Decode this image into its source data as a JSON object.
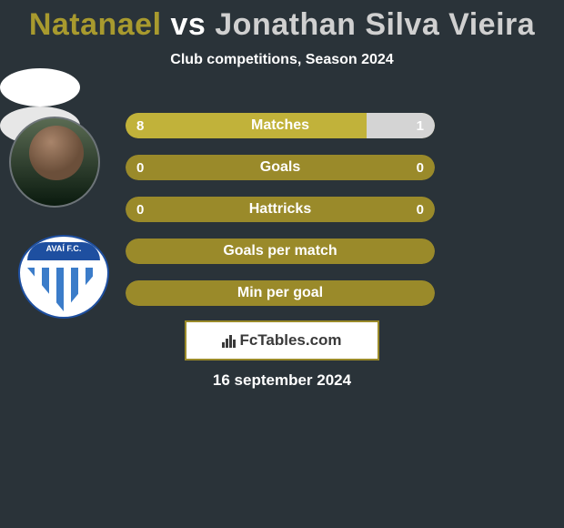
{
  "title": {
    "prefix": "Natanael",
    "vs": " vs ",
    "suffix": "Jonathan Silva Vieira",
    "color_prefix": "#a89a2e",
    "color_vs": "#ffffff",
    "color_suffix": "#d0d0d0"
  },
  "subtitle": "Club competitions, Season 2024",
  "club_badge_label": "AVAÍ F.C.",
  "colors": {
    "bar_empty": "#9a8a2a",
    "bar_left_fill": "#c1b23a",
    "bar_right_fill": "#d4d4d4",
    "background": "#2a3339"
  },
  "stats": [
    {
      "label": "Matches",
      "left_val": "8",
      "right_val": "1",
      "left_pct": 78,
      "right_pct": 22,
      "show_vals": true
    },
    {
      "label": "Goals",
      "left_val": "0",
      "right_val": "0",
      "left_pct": 0,
      "right_pct": 0,
      "show_vals": true
    },
    {
      "label": "Hattricks",
      "left_val": "0",
      "right_val": "0",
      "left_pct": 0,
      "right_pct": 0,
      "show_vals": true
    },
    {
      "label": "Goals per match",
      "left_val": "",
      "right_val": "",
      "left_pct": 0,
      "right_pct": 0,
      "show_vals": false
    },
    {
      "label": "Min per goal",
      "left_val": "",
      "right_val": "",
      "left_pct": 0,
      "right_pct": 0,
      "show_vals": false
    }
  ],
  "brand": "FcTables.com",
  "date": "16 september 2024"
}
